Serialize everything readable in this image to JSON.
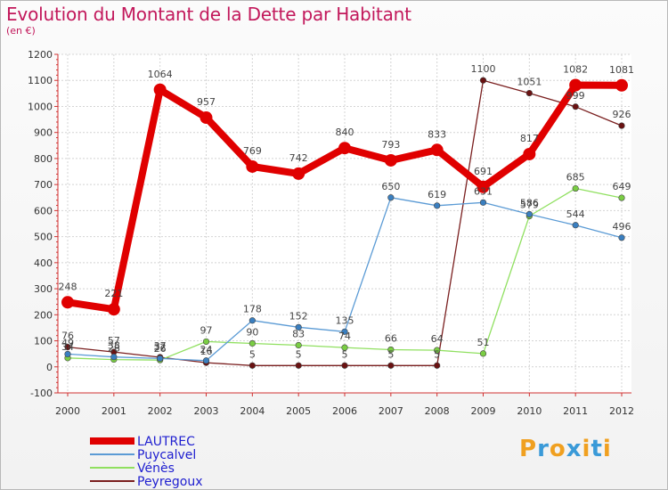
{
  "header": {
    "title": "Evolution du Montant de la Dette par Habitant",
    "subtitle": "(en €)"
  },
  "logo": {
    "text": "Proxiti"
  },
  "chart_data": {
    "type": "line",
    "x": [
      2000,
      2001,
      2002,
      2003,
      2004,
      2005,
      2006,
      2007,
      2008,
      2009,
      2010,
      2011,
      2012
    ],
    "ylim": [
      -100,
      1200
    ],
    "yticks": [
      -100,
      0,
      100,
      200,
      300,
      400,
      500,
      600,
      700,
      800,
      900,
      1000,
      1100,
      1200
    ],
    "grid": true,
    "legend_position": "bottom-left",
    "series": [
      {
        "name": "LAUTREC",
        "color": "#e00000",
        "values": [
          248,
          221,
          1064,
          957,
          769,
          742,
          840,
          793,
          833,
          691,
          817,
          1082,
          1081
        ]
      },
      {
        "name": "Puycalvel",
        "color": "#5b9bd5",
        "values": [
          49,
          38,
          32,
          24,
          178,
          152,
          135,
          650,
          619,
          631,
          586,
          544,
          496
        ]
      },
      {
        "name": "Vénès",
        "color": "#90e060",
        "values": [
          34,
          28,
          26,
          97,
          90,
          83,
          74,
          66,
          64,
          51,
          579,
          685,
          649
        ]
      },
      {
        "name": "Peyregoux",
        "color": "#7a1f1f",
        "values": [
          76,
          57,
          37,
          16,
          5,
          5,
          5,
          5,
          5,
          1100,
          1051,
          999,
          926
        ]
      }
    ]
  }
}
